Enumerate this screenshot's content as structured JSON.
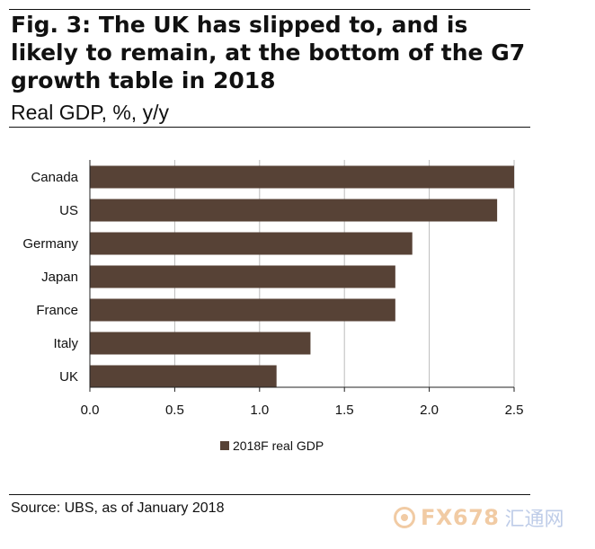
{
  "header": {
    "title": "Fig. 3: The UK has slipped to, and is likely to remain, at the bottom of the G7 growth table in 2018",
    "subtitle": "Real GDP, %, y/y"
  },
  "footer": {
    "source": "Source: UBS, as of January 2018"
  },
  "watermark": {
    "text": "FX678",
    "cn_text": "汇通网"
  },
  "colors": {
    "bar": "#574236",
    "axis": "#222222",
    "grid": "#bbbbbb",
    "text": "#111111"
  },
  "chart_data": {
    "type": "bar",
    "orientation": "horizontal",
    "categories": [
      "Canada",
      "US",
      "Germany",
      "Japan",
      "France",
      "Italy",
      "UK"
    ],
    "series": [
      {
        "name": "2018F real GDP",
        "values": [
          2.5,
          2.4,
          1.9,
          1.8,
          1.8,
          1.3,
          1.1
        ]
      }
    ],
    "xlim": [
      0.0,
      2.5
    ],
    "xticks": [
      "0.0",
      "0.5",
      "1.0",
      "1.5",
      "2.0",
      "2.5"
    ],
    "grid": "vertical",
    "legend_position": "bottom-center"
  }
}
